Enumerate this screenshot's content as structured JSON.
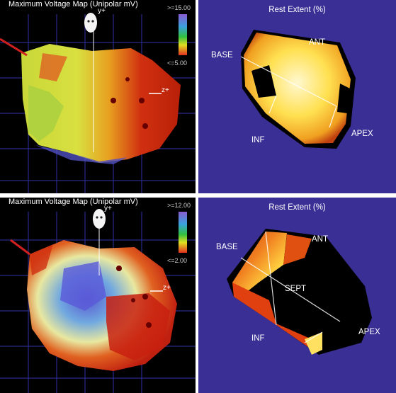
{
  "panels": [
    {
      "title": "Maximum Voltage Map (Unipolar mV)",
      "scale_max": ">=15.00",
      "scale_min": "<=5.00",
      "axis_y": "y+",
      "axis_z": "z+"
    },
    {
      "title": "Rest Extent (%)",
      "labels": {
        "base": "BASE",
        "ant": "ANT",
        "inf": "INF",
        "apex": "APEX"
      }
    },
    {
      "title": "Maximum Voltage Map (Unipolar mV)",
      "scale_max": ">=12.00",
      "scale_min": "<=2.00",
      "axis_y": "y+",
      "axis_z": "z+"
    },
    {
      "title": "Rest Extent (%)",
      "labels": {
        "base": "BASE",
        "ant": "ANT",
        "sept": "SEPT",
        "inf": "INF",
        "apex": "APEX"
      }
    }
  ],
  "colors": {
    "voltage_bg": "#000000",
    "rest_bg": "#3a2f95",
    "scale": [
      "#8a5ad0",
      "#3aa0e0",
      "#30c040",
      "#e0e020",
      "#e03020"
    ]
  }
}
